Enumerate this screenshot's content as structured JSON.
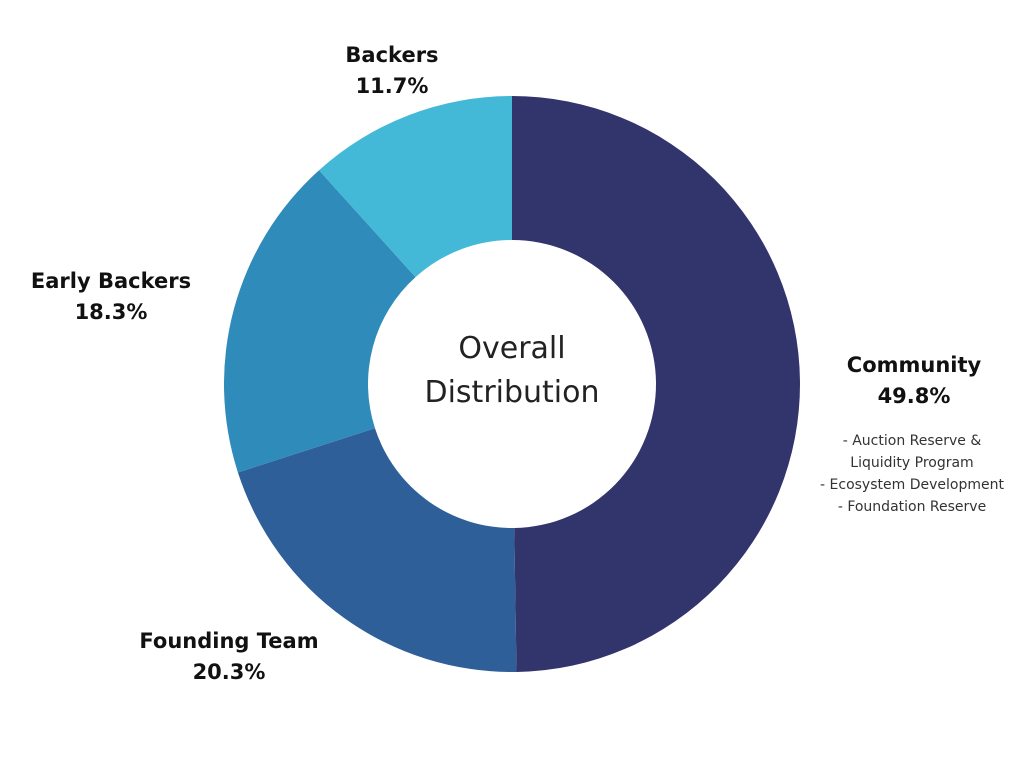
{
  "chart_data": {
    "type": "pie",
    "donut": true,
    "center_title": [
      "Overall",
      "Distribution"
    ],
    "slices": [
      {
        "label": "Community",
        "value": 49.8,
        "value_label": "49.8%",
        "color": "#32346C",
        "notes": [
          "- Auction Reserve &",
          "Liquidity Program",
          "- Ecosystem Development",
          "- Foundation Reserve"
        ]
      },
      {
        "label": "Founding Team",
        "value": 20.3,
        "value_label": "20.3%",
        "color": "#2F5F99"
      },
      {
        "label": "Early Backers",
        "value": 18.3,
        "value_label": "18.3%",
        "color": "#2E8BBA"
      },
      {
        "label": "Backers",
        "value": 11.7,
        "value_label": "11.7%",
        "color": "#43B8D7"
      }
    ]
  }
}
